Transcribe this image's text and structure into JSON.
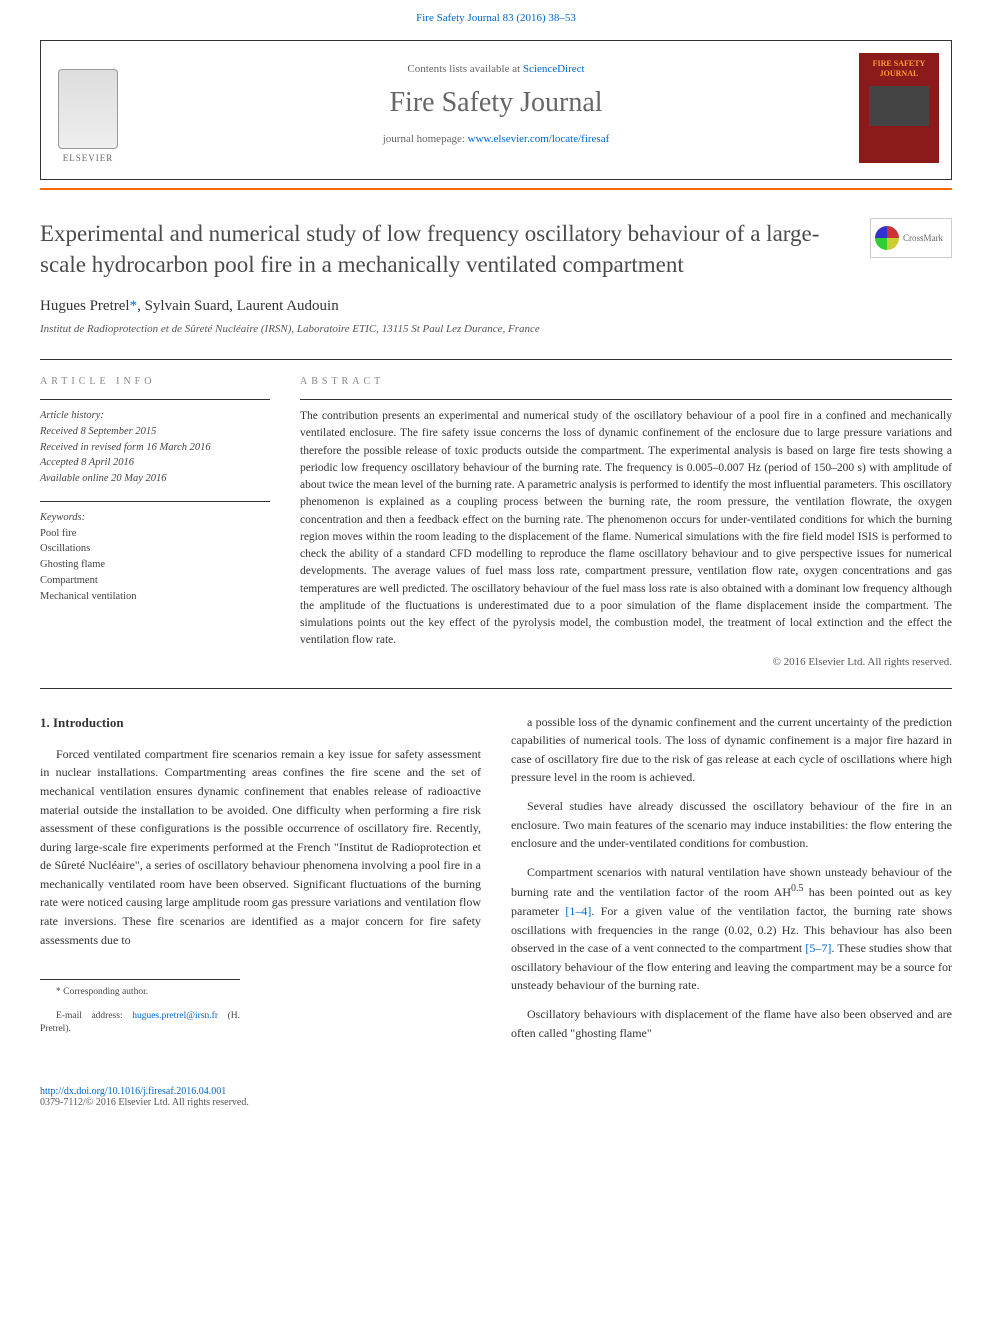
{
  "topLink": {
    "text": "Fire Safety Journal 83 (2016) 38–53"
  },
  "header": {
    "contentsPrefix": "Contents lists available at ",
    "contentsLink": "ScienceDirect",
    "journalName": "Fire Safety Journal",
    "homepagePrefix": "journal homepage: ",
    "homepageLink": "www.elsevier.com/locate/firesaf",
    "publisher": "ELSEVIER",
    "coverTitle": "FIRE SAFETY JOURNAL"
  },
  "crossmark": "CrossMark",
  "article": {
    "title": "Experimental and numerical study of low frequency oscillatory behaviour of a large-scale hydrocarbon pool fire in a mechanically ventilated compartment",
    "authors": "Hugues Pretrel",
    "authorsRest": ", Sylvain Suard, Laurent Audouin",
    "asterisk": "*",
    "affiliation": "Institut de Radioprotection et de Sûreté Nucléaire (IRSN), Laboratoire ETIC, 13115 St Paul Lez Durance, France"
  },
  "labels": {
    "articleInfo": "ARTICLE INFO",
    "abstract": "ABSTRACT"
  },
  "history": {
    "label": "Article history:",
    "received": "Received 8 September 2015",
    "revised": "Received in revised form 16 March 2016",
    "accepted": "Accepted 8 April 2016",
    "online": "Available online 20 May 2016"
  },
  "keywords": {
    "label": "Keywords:",
    "items": [
      "Pool fire",
      "Oscillations",
      "Ghosting flame",
      "Compartment",
      "Mechanical ventilation"
    ]
  },
  "abstract": "The contribution presents an experimental and numerical study of the oscillatory behaviour of a pool fire in a confined and mechanically ventilated enclosure. The fire safety issue concerns the loss of dynamic confinement of the enclosure due to large pressure variations and therefore the possible release of toxic products outside the compartment. The experimental analysis is based on large fire tests showing a periodic low frequency oscillatory behaviour of the burning rate. The frequency is 0.005–0.007 Hz (period of 150–200 s) with amplitude of about twice the mean level of the burning rate. A parametric analysis is performed to identify the most influential parameters. This oscillatory phenomenon is explained as a coupling process between the burning rate, the room pressure, the ventilation flowrate, the oxygen concentration and then a feedback effect on the burning rate. The phenomenon occurs for under-ventilated conditions for which the burning region moves within the room leading to the displacement of the flame. Numerical simulations with the fire field model ISIS is performed to check the ability of a standard CFD modelling to reproduce the flame oscillatory behaviour and to give perspective issues for numerical developments. The average values of fuel mass loss rate, compartment pressure, ventilation flow rate, oxygen concentrations and gas temperatures are well predicted. The oscillatory behaviour of the fuel mass loss rate is also obtained with a dominant low frequency although the amplitude of the fluctuations is underestimated due to a poor simulation of the flame displacement inside the compartment. The simulations points out the key effect of the pyrolysis model, the combustion model, the treatment of local extinction and the effect the ventilation flow rate.",
  "copyright": "© 2016 Elsevier Ltd. All rights reserved.",
  "body": {
    "h1": "1. Introduction",
    "p1": "Forced ventilated compartment fire scenarios remain a key issue for safety assessment in nuclear installations. Compartmenting areas confines the fire scene and the set of mechanical ventilation ensures dynamic confinement that enables release of radioactive material outside the installation to be avoided. One difficulty when performing a fire risk assessment of these configurations is the possible occurrence of oscillatory fire. Recently, during large-scale fire experiments performed at the French \"Institut de Radioprotection et de Sûreté Nucléaire\", a series of oscillatory behaviour phenomena involving a pool fire in a mechanically ventilated room have been observed. Significant fluctuations of the burning rate were noticed causing large amplitude room gas pressure variations and ventilation flow rate inversions. These fire scenarios are identified as a major concern for fire safety assessments due to",
    "p2": "a possible loss of the dynamic confinement and the current uncertainty of the prediction capabilities of numerical tools. The loss of dynamic confinement is a major fire hazard in case of oscillatory fire due to the risk of gas release at each cycle of oscillations where high pressure level in the room is achieved.",
    "p3": "Several studies have already discussed the oscillatory behaviour of the fire in an enclosure. Two main features of the scenario may induce instabilities: the flow entering the enclosure and the under-ventilated conditions for combustion.",
    "p4a": "Compartment scenarios with natural ventilation have shown unsteady behaviour of the burning rate and the ventilation factor of the room AH",
    "p4b": " has been pointed out as key parameter ",
    "p4c": ". For a given value of the ventilation factor, the burning rate shows oscillations with frequencies in the range (0.02, 0.2) Hz. This behaviour has also been observed in the case of a vent connected to the compartment ",
    "p4d": ". These studies show that oscillatory behaviour of the flow entering and leaving the compartment may be a source for unsteady behaviour of the burning rate.",
    "p5": "Oscillatory behaviours with displacement of the flame have also been observed and are often called \"ghosting flame\"",
    "ref1": "[1–4]",
    "ref2": "[5–7]",
    "sup": "0.5"
  },
  "footnotes": {
    "corr": "* Corresponding author.",
    "emailLabel": "E-mail address: ",
    "email": "hugues.pretrel@irsn.fr",
    "emailSuffix": " (H. Pretrel)."
  },
  "bottom": {
    "doi": "http://dx.doi.org/10.1016/j.firesaf.2016.04.001",
    "issn": "0379-7112/© 2016 Elsevier Ltd. All rights reserved."
  },
  "colors": {
    "link": "#0066cc",
    "accent": "#ff6600",
    "coverBg": "#8b1a1a",
    "coverText": "#ff9933"
  }
}
